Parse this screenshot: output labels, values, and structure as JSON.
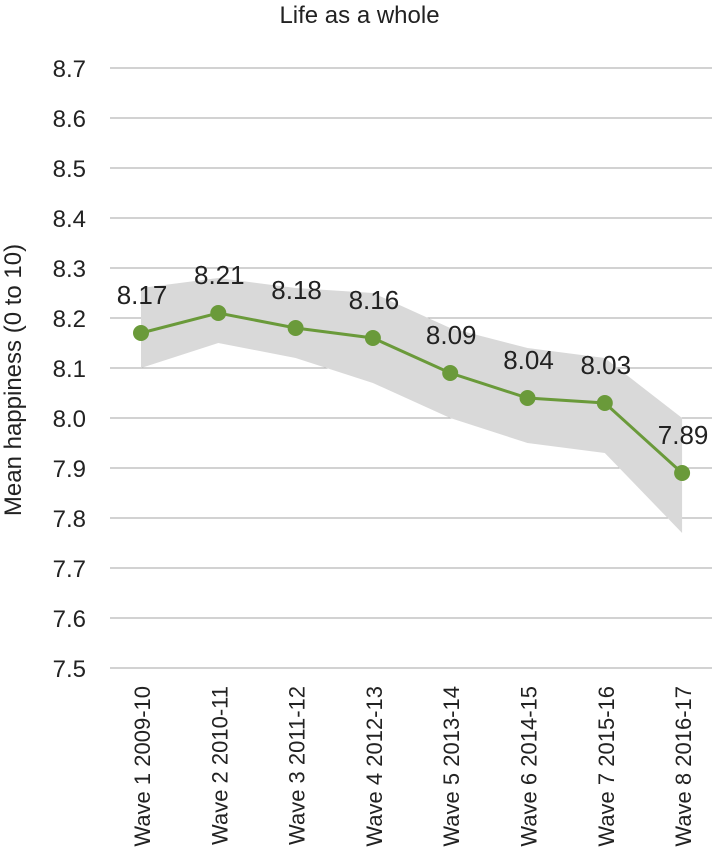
{
  "chart_data": {
    "type": "line",
    "title": "Life as a whole",
    "xlabel": "",
    "ylabel": "Mean happiness (0 to 10)",
    "ylim": [
      7.5,
      8.7
    ],
    "yticks": [
      "7.5",
      "7.6",
      "7.7",
      "7.8",
      "7.9",
      "8.0",
      "8.1",
      "8.2",
      "8.3",
      "8.4",
      "8.5",
      "8.6",
      "8.7"
    ],
    "grid": true,
    "categories": [
      "Wave 1 2009-10",
      "Wave 2 2010-11",
      "Wave 3 2011-12",
      "Wave 4 2012-13",
      "Wave 5 2013-14",
      "Wave 6 2014-15",
      "Wave 7 2015-16",
      "Wave 8 2016-17"
    ],
    "series": [
      {
        "values": [
          8.17,
          8.21,
          8.18,
          8.16,
          8.09,
          8.04,
          8.03,
          7.89
        ],
        "labels": [
          "8.17",
          "8.21",
          "8.18",
          "8.16",
          "8.09",
          "8.04",
          "8.03",
          "7.89"
        ],
        "upper": [
          8.26,
          8.28,
          8.26,
          8.25,
          8.18,
          8.14,
          8.12,
          8.0
        ],
        "lower": [
          8.1,
          8.15,
          8.12,
          8.07,
          8.0,
          7.95,
          7.93,
          7.77
        ]
      }
    ],
    "colors": {
      "line": "#6a9a3a",
      "band": "#d9d9d9",
      "grid": "#a6a6a6"
    }
  }
}
